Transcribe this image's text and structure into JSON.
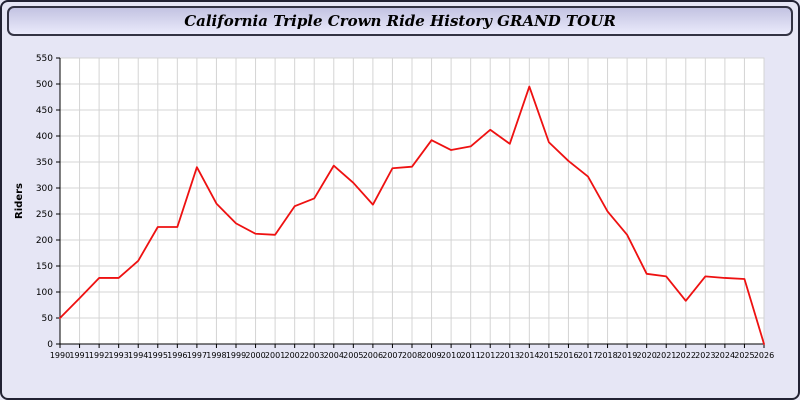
{
  "window": {
    "title": "California Triple Crown Ride History GRAND TOUR"
  },
  "colors": {
    "page_bg": "#e6e6f5",
    "titlebar_bg_top": "#c3c3e2",
    "titlebar_bg_bottom": "#eaeafb",
    "window_border": "#222233"
  },
  "chart_data": {
    "type": "line",
    "title": "California Triple Crown Ride History GRAND TOUR",
    "xlabel": "",
    "ylabel": "Riders",
    "x": [
      1990,
      1991,
      1992,
      1993,
      1994,
      1995,
      1996,
      1997,
      1998,
      1999,
      2000,
      2001,
      2002,
      2003,
      2004,
      2005,
      2006,
      2007,
      2008,
      2009,
      2010,
      2011,
      2012,
      2013,
      2014,
      2015,
      2016,
      2017,
      2018,
      2019,
      2020,
      2021,
      2022,
      2023,
      2024,
      2025,
      2026
    ],
    "series": [
      {
        "name": "Riders",
        "values": [
          50,
          88,
          127,
          127,
          160,
          225,
          225,
          340,
          270,
          232,
          212,
          210,
          265,
          280,
          343,
          310,
          268,
          338,
          341,
          392,
          373,
          380,
          412,
          385,
          495,
          388,
          352,
          322,
          255,
          210,
          135,
          130,
          83,
          130,
          127,
          125,
          0
        ]
      }
    ],
    "ylim": [
      0,
      550
    ],
    "ytick_step": 50,
    "grid": true,
    "legend_position": "none",
    "colors": {
      "line": "#ee1111",
      "grid": "#d4d4d4",
      "axis": "#000000",
      "plot_bg": "#ffffff"
    }
  }
}
